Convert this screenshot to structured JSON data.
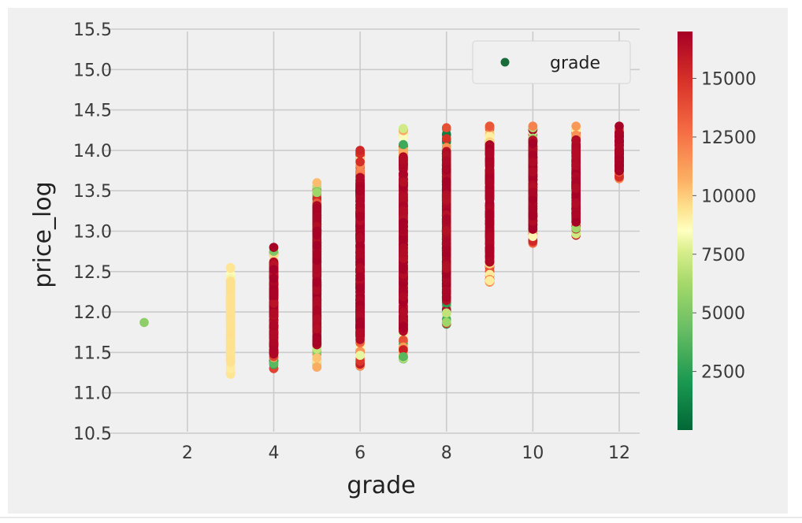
{
  "chart_data": {
    "type": "scatter",
    "xlabel": "grade",
    "ylabel": "price_log",
    "xlim": [
      0.5,
      12.5
    ],
    "ylim": [
      10.5,
      15.5
    ],
    "x_ticks": [
      "2",
      "4",
      "6",
      "8",
      "10",
      "12"
    ],
    "y_ticks": [
      "10.5",
      "11.0",
      "11.5",
      "12.0",
      "12.5",
      "13.0",
      "13.5",
      "14.0",
      "14.5",
      "15.0",
      "15.5"
    ],
    "grid": true,
    "legend": {
      "position": "top-right",
      "entries": [
        "grade"
      ],
      "marker_color": "#1a6b3a"
    },
    "colorbar": {
      "colormap": "RdYlGn_r",
      "range": [
        0,
        17000
      ],
      "ticks": [
        "2500",
        "5000",
        "7500",
        "10000",
        "12500",
        "15000"
      ],
      "tick_values": [
        2500,
        5000,
        7500,
        10000,
        12500,
        15000
      ]
    },
    "series": [
      {
        "grade": 1,
        "min": 11.87,
        "max": 11.87,
        "color_range": [
          5500,
          5500
        ]
      },
      {
        "grade": 3,
        "min": 11.23,
        "max": 12.55,
        "color_range": [
          8000,
          9500
        ]
      },
      {
        "grade": 4,
        "min": 11.3,
        "max": 12.8,
        "color_range": [
          0,
          17000
        ]
      },
      {
        "grade": 5,
        "min": 11.32,
        "max": 13.6,
        "color_range": [
          4000,
          17000
        ]
      },
      {
        "grade": 6,
        "min": 11.33,
        "max": 14.0,
        "color_range": [
          6500,
          17000
        ]
      },
      {
        "grade": 7,
        "min": 11.42,
        "max": 14.27,
        "color_range": [
          3000,
          17000
        ]
      },
      {
        "grade": 8,
        "min": 11.85,
        "max": 14.28,
        "color_range": [
          500,
          17000
        ]
      },
      {
        "grade": 9,
        "min": 12.37,
        "max": 14.3,
        "color_range": [
          9000,
          17000
        ]
      },
      {
        "grade": 10,
        "min": 12.85,
        "max": 14.3,
        "color_range": [
          3500,
          17000
        ]
      },
      {
        "grade": 11,
        "min": 12.95,
        "max": 14.3,
        "color_range": [
          5000,
          17000
        ]
      },
      {
        "grade": 12,
        "min": 13.65,
        "max": 14.3,
        "color_range": [
          11000,
          17000
        ]
      }
    ]
  }
}
